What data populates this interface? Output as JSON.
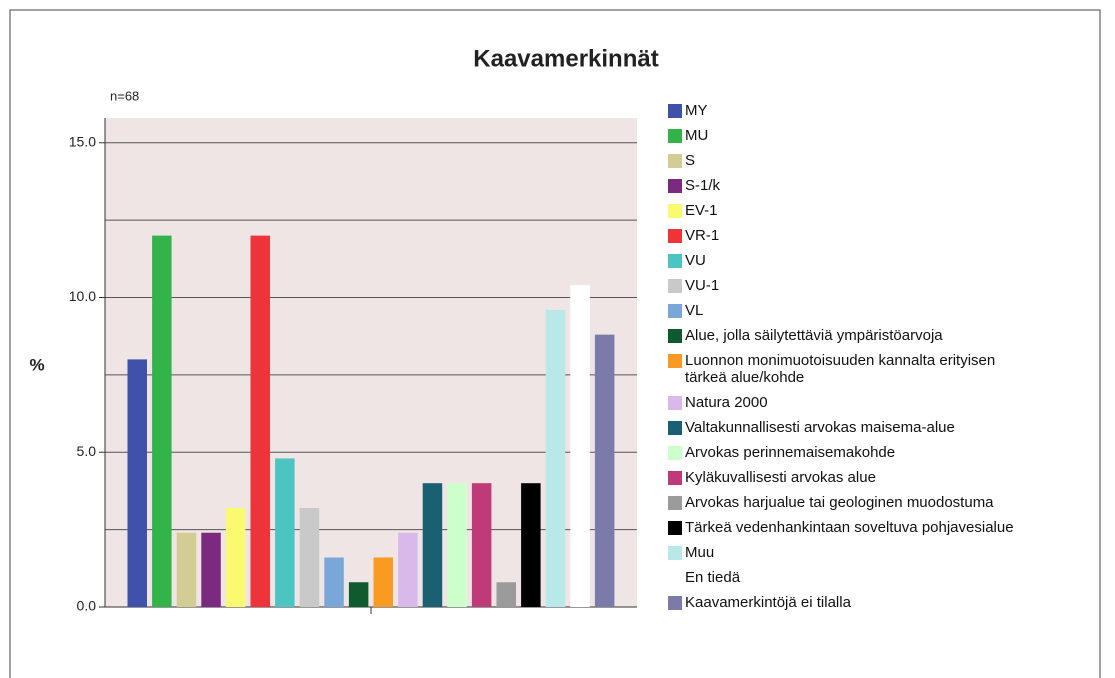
{
  "chart_data": {
    "type": "bar",
    "title": "Kaavamerkinnät",
    "annotation": "n=68",
    "ylabel": "%",
    "categories": [
      null
    ],
    "series": [
      {
        "name": "MY",
        "color": "#3f51a8",
        "values": [
          8.0
        ]
      },
      {
        "name": "MU",
        "color": "#33b44a",
        "values": [
          12.0
        ]
      },
      {
        "name": "S",
        "color": "#d4cc95",
        "values": [
          2.4
        ]
      },
      {
        "name": "S-1/k",
        "color": "#7a2a7f",
        "values": [
          2.4
        ]
      },
      {
        "name": "EV-1",
        "color": "#fafa70",
        "values": [
          3.2
        ]
      },
      {
        "name": "VR-1",
        "color": "#ee3438",
        "values": [
          12.0
        ]
      },
      {
        "name": "VU",
        "color": "#4cc4c1",
        "values": [
          4.8
        ]
      },
      {
        "name": "VU-1",
        "color": "#c9c9c9",
        "values": [
          3.2
        ]
      },
      {
        "name": "VL",
        "color": "#7ba7d8",
        "values": [
          1.6
        ]
      },
      {
        "name": "Alue, jolla säilytettäviä ympäristöarvoja",
        "color": "#0f5a2e",
        "values": [
          0.8
        ]
      },
      {
        "name": "Luonnon monimuotoisuuden kannalta erityisen tärkeä alue/kohde",
        "color": "#f99b22",
        "values": [
          1.6
        ]
      },
      {
        "name": "Natura 2000",
        "color": "#d9b8ea",
        "values": [
          2.4
        ]
      },
      {
        "name": "Valtakunnallisesti arvokas maisema-alue",
        "color": "#1a5f72",
        "values": [
          4.0
        ]
      },
      {
        "name": "Arvokas perinnemaisemakohde",
        "color": "#ccffcc",
        "values": [
          4.0
        ]
      },
      {
        "name": "Kyläkuvallisesti arvokas alue",
        "color": "#bf3a78",
        "values": [
          4.0
        ]
      },
      {
        "name": "Arvokas harjualue tai geologinen muodostuma",
        "color": "#9b9b9b",
        "values": [
          0.8
        ]
      },
      {
        "name": "Tärkeä vedenhankintaan soveltuva pohjavesialue",
        "color": "#000000",
        "values": [
          4.0
        ]
      },
      {
        "name": "Muu",
        "color": "#b9e8e8",
        "values": [
          9.6
        ]
      },
      {
        "name": "En tiedä",
        "color": "#ffffff",
        "values": [
          10.4
        ]
      },
      {
        "name": "Kaavamerkintöjä ei tilalla",
        "color": "#7b7ba9",
        "values": [
          8.8
        ]
      }
    ],
    "ylim": [
      0,
      15.8
    ],
    "yticks": [
      {
        "value": 0,
        "label": "0.0"
      },
      {
        "value": 5,
        "label": "5.0"
      },
      {
        "value": 10,
        "label": "10.0"
      },
      {
        "value": 15,
        "label": "15.0"
      }
    ],
    "minor_gridlines": [
      2.5,
      7.5,
      12.5
    ],
    "grid": true,
    "legend": "right",
    "plot_background": "#efe5e5"
  }
}
